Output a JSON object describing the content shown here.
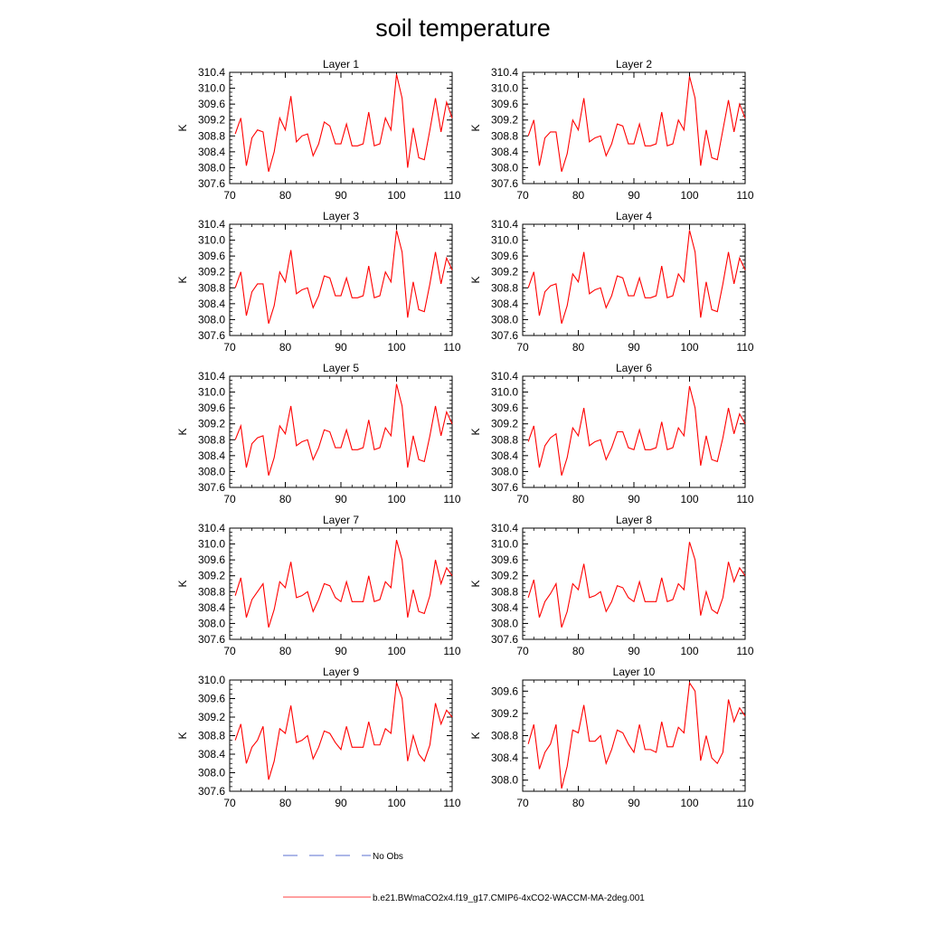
{
  "figure": {
    "title": "soil temperature",
    "legend": [
      {
        "label": "No Obs",
        "color": "#5a6fd0",
        "dash": true
      },
      {
        "label": "b.e21.BWmaCO2x4.f19_g17.CMIP6-4xCO2-WACCM-MA-2deg.001",
        "color": "#ff4040",
        "dash": false
      }
    ]
  },
  "chart_data": [
    {
      "type": "line",
      "title": "Layer 1",
      "xlabel": "",
      "ylabel": "K",
      "xlim": [
        70,
        110
      ],
      "ylim": [
        307.6,
        310.4
      ],
      "xticks": [
        70,
        80,
        90,
        100,
        110
      ],
      "yticks": [
        307.6,
        308.0,
        308.4,
        308.8,
        309.2,
        309.6,
        310.0,
        310.4
      ],
      "x": [
        71,
        72,
        73,
        74,
        75,
        76,
        77,
        78,
        79,
        80,
        81,
        82,
        83,
        84,
        85,
        86,
        87,
        88,
        89,
        90,
        91,
        92,
        93,
        94,
        95,
        96,
        97,
        98,
        99,
        100,
        101,
        102,
        103,
        104,
        105,
        106,
        107,
        108,
        109,
        110
      ],
      "series": [
        {
          "color": "#ff0000",
          "values": [
            308.85,
            309.25,
            308.05,
            308.75,
            308.95,
            308.9,
            307.9,
            308.4,
            309.25,
            308.95,
            309.8,
            308.65,
            308.8,
            308.85,
            308.3,
            308.6,
            309.15,
            309.05,
            308.6,
            308.6,
            309.1,
            308.55,
            308.55,
            308.6,
            309.4,
            308.55,
            308.6,
            309.25,
            308.95,
            310.35,
            309.75,
            308.0,
            309.0,
            308.25,
            308.2,
            308.95,
            309.75,
            308.9,
            309.65,
            309.25
          ]
        }
      ]
    },
    {
      "type": "line",
      "title": "Layer 2",
      "xlabel": "",
      "ylabel": "K",
      "xlim": [
        70,
        110
      ],
      "ylim": [
        307.6,
        310.4
      ],
      "xticks": [
        70,
        80,
        90,
        100,
        110
      ],
      "yticks": [
        307.6,
        308.0,
        308.4,
        308.8,
        309.2,
        309.6,
        310.0,
        310.4
      ],
      "x": [
        71,
        72,
        73,
        74,
        75,
        76,
        77,
        78,
        79,
        80,
        81,
        82,
        83,
        84,
        85,
        86,
        87,
        88,
        89,
        90,
        91,
        92,
        93,
        94,
        95,
        96,
        97,
        98,
        99,
        100,
        101,
        102,
        103,
        104,
        105,
        106,
        107,
        108,
        109,
        110
      ],
      "series": [
        {
          "color": "#ff0000",
          "values": [
            308.8,
            309.2,
            308.05,
            308.75,
            308.9,
            308.9,
            307.9,
            308.35,
            309.2,
            308.95,
            309.75,
            308.65,
            308.75,
            308.8,
            308.3,
            308.6,
            309.1,
            309.05,
            308.6,
            308.6,
            309.1,
            308.55,
            308.55,
            308.6,
            309.4,
            308.55,
            308.6,
            309.2,
            308.95,
            310.3,
            309.75,
            308.05,
            308.95,
            308.25,
            308.2,
            308.95,
            309.7,
            308.9,
            309.6,
            309.25
          ]
        }
      ]
    },
    {
      "type": "line",
      "title": "Layer 3",
      "xlabel": "",
      "ylabel": "K",
      "xlim": [
        70,
        110
      ],
      "ylim": [
        307.6,
        310.4
      ],
      "xticks": [
        70,
        80,
        90,
        100,
        110
      ],
      "yticks": [
        307.6,
        308.0,
        308.4,
        308.8,
        309.2,
        309.6,
        310.0,
        310.4
      ],
      "x": [
        71,
        72,
        73,
        74,
        75,
        76,
        77,
        78,
        79,
        80,
        81,
        82,
        83,
        84,
        85,
        86,
        87,
        88,
        89,
        90,
        91,
        92,
        93,
        94,
        95,
        96,
        97,
        98,
        99,
        100,
        101,
        102,
        103,
        104,
        105,
        106,
        107,
        108,
        109,
        110
      ],
      "series": [
        {
          "color": "#ff0000",
          "values": [
            308.8,
            309.2,
            308.1,
            308.7,
            308.9,
            308.9,
            307.9,
            308.35,
            309.2,
            308.95,
            309.75,
            308.65,
            308.75,
            308.8,
            308.3,
            308.6,
            309.1,
            309.05,
            308.6,
            308.6,
            309.05,
            308.55,
            308.55,
            308.6,
            309.35,
            308.55,
            308.6,
            309.2,
            308.95,
            310.25,
            309.7,
            308.05,
            308.95,
            308.25,
            308.2,
            308.9,
            309.7,
            308.9,
            309.55,
            309.25
          ]
        }
      ]
    },
    {
      "type": "line",
      "title": "Layer 4",
      "xlabel": "",
      "ylabel": "K",
      "xlim": [
        70,
        110
      ],
      "ylim": [
        307.6,
        310.4
      ],
      "xticks": [
        70,
        80,
        90,
        100,
        110
      ],
      "yticks": [
        307.6,
        308.0,
        308.4,
        308.8,
        309.2,
        309.6,
        310.0,
        310.4
      ],
      "x": [
        71,
        72,
        73,
        74,
        75,
        76,
        77,
        78,
        79,
        80,
        81,
        82,
        83,
        84,
        85,
        86,
        87,
        88,
        89,
        90,
        91,
        92,
        93,
        94,
        95,
        96,
        97,
        98,
        99,
        100,
        101,
        102,
        103,
        104,
        105,
        106,
        107,
        108,
        109,
        110
      ],
      "series": [
        {
          "color": "#ff0000",
          "values": [
            308.8,
            309.2,
            308.1,
            308.7,
            308.85,
            308.9,
            307.9,
            308.35,
            309.15,
            308.95,
            309.7,
            308.65,
            308.75,
            308.8,
            308.3,
            308.6,
            309.1,
            309.05,
            308.6,
            308.6,
            309.05,
            308.55,
            308.55,
            308.6,
            309.35,
            308.55,
            308.6,
            309.15,
            308.95,
            310.25,
            309.7,
            308.05,
            308.95,
            308.25,
            308.2,
            308.9,
            309.7,
            308.9,
            309.55,
            309.25
          ]
        }
      ]
    },
    {
      "type": "line",
      "title": "Layer 5",
      "xlabel": "",
      "ylabel": "K",
      "xlim": [
        70,
        110
      ],
      "ylim": [
        307.6,
        310.4
      ],
      "xticks": [
        70,
        80,
        90,
        100,
        110
      ],
      "yticks": [
        307.6,
        308.0,
        308.4,
        308.8,
        309.2,
        309.6,
        310.0,
        310.4
      ],
      "x": [
        71,
        72,
        73,
        74,
        75,
        76,
        77,
        78,
        79,
        80,
        81,
        82,
        83,
        84,
        85,
        86,
        87,
        88,
        89,
        90,
        91,
        92,
        93,
        94,
        95,
        96,
        97,
        98,
        99,
        100,
        101,
        102,
        103,
        104,
        105,
        106,
        107,
        108,
        109,
        110
      ],
      "series": [
        {
          "color": "#ff0000",
          "values": [
            308.8,
            309.15,
            308.1,
            308.7,
            308.85,
            308.9,
            307.9,
            308.35,
            309.15,
            308.95,
            309.65,
            308.65,
            308.75,
            308.8,
            308.3,
            308.6,
            309.05,
            309.0,
            308.6,
            308.6,
            309.05,
            308.55,
            308.55,
            308.6,
            309.3,
            308.55,
            308.6,
            309.1,
            308.9,
            310.2,
            309.65,
            308.1,
            308.9,
            308.3,
            308.25,
            308.9,
            309.65,
            308.9,
            309.5,
            309.2
          ]
        }
      ]
    },
    {
      "type": "line",
      "title": "Layer 6",
      "xlabel": "",
      "ylabel": "K",
      "xlim": [
        70,
        110
      ],
      "ylim": [
        307.6,
        310.4
      ],
      "xticks": [
        70,
        80,
        90,
        100,
        110
      ],
      "yticks": [
        307.6,
        308.0,
        308.4,
        308.8,
        309.2,
        309.6,
        310.0,
        310.4
      ],
      "x": [
        71,
        72,
        73,
        74,
        75,
        76,
        77,
        78,
        79,
        80,
        81,
        82,
        83,
        84,
        85,
        86,
        87,
        88,
        89,
        90,
        91,
        92,
        93,
        94,
        95,
        96,
        97,
        98,
        99,
        100,
        101,
        102,
        103,
        104,
        105,
        106,
        107,
        108,
        109,
        110
      ],
      "series": [
        {
          "color": "#ff0000",
          "values": [
            308.75,
            309.15,
            308.1,
            308.65,
            308.85,
            308.95,
            307.9,
            308.35,
            309.1,
            308.9,
            309.6,
            308.65,
            308.75,
            308.8,
            308.3,
            308.6,
            309.0,
            309.0,
            308.6,
            308.55,
            309.05,
            308.55,
            308.55,
            308.6,
            309.25,
            308.55,
            308.6,
            309.1,
            308.9,
            310.15,
            309.6,
            308.15,
            308.9,
            308.3,
            308.25,
            308.85,
            309.6,
            308.95,
            309.45,
            309.2
          ]
        }
      ]
    },
    {
      "type": "line",
      "title": "Layer 7",
      "xlabel": "",
      "ylabel": "K",
      "xlim": [
        70,
        110
      ],
      "ylim": [
        307.6,
        310.4
      ],
      "xticks": [
        70,
        80,
        90,
        100,
        110
      ],
      "yticks": [
        307.6,
        308.0,
        308.4,
        308.8,
        309.2,
        309.6,
        310.0,
        310.4
      ],
      "x": [
        71,
        72,
        73,
        74,
        75,
        76,
        77,
        78,
        79,
        80,
        81,
        82,
        83,
        84,
        85,
        86,
        87,
        88,
        89,
        90,
        91,
        92,
        93,
        94,
        95,
        96,
        97,
        98,
        99,
        100,
        101,
        102,
        103,
        104,
        105,
        106,
        107,
        108,
        109,
        110
      ],
      "series": [
        {
          "color": "#ff0000",
          "values": [
            308.7,
            309.15,
            308.15,
            308.6,
            308.8,
            309.0,
            307.9,
            308.35,
            309.05,
            308.9,
            309.55,
            308.65,
            308.7,
            308.8,
            308.3,
            308.6,
            309.0,
            308.95,
            308.65,
            308.55,
            309.05,
            308.55,
            308.55,
            308.55,
            309.2,
            308.55,
            308.6,
            309.05,
            308.9,
            310.1,
            309.6,
            308.15,
            308.85,
            308.3,
            308.25,
            308.7,
            309.6,
            309.0,
            309.4,
            309.2
          ]
        }
      ]
    },
    {
      "type": "line",
      "title": "Layer 8",
      "xlabel": "",
      "ylabel": "K",
      "xlim": [
        70,
        110
      ],
      "ylim": [
        307.6,
        310.4
      ],
      "xticks": [
        70,
        80,
        90,
        100,
        110
      ],
      "yticks": [
        307.6,
        308.0,
        308.4,
        308.8,
        309.2,
        309.6,
        310.0,
        310.4
      ],
      "x": [
        71,
        72,
        73,
        74,
        75,
        76,
        77,
        78,
        79,
        80,
        81,
        82,
        83,
        84,
        85,
        86,
        87,
        88,
        89,
        90,
        91,
        92,
        93,
        94,
        95,
        96,
        97,
        98,
        99,
        100,
        101,
        102,
        103,
        104,
        105,
        106,
        107,
        108,
        109,
        110
      ],
      "series": [
        {
          "color": "#ff0000",
          "values": [
            308.65,
            309.1,
            308.15,
            308.55,
            308.75,
            309.0,
            307.9,
            308.3,
            309.0,
            308.85,
            309.5,
            308.65,
            308.7,
            308.8,
            308.3,
            308.55,
            308.95,
            308.9,
            308.65,
            308.55,
            309.05,
            308.55,
            308.55,
            308.55,
            309.15,
            308.55,
            308.6,
            309.0,
            308.85,
            310.05,
            309.6,
            308.2,
            308.8,
            308.35,
            308.25,
            308.65,
            309.55,
            309.05,
            309.4,
            309.2
          ]
        }
      ]
    },
    {
      "type": "line",
      "title": "Layer 9",
      "xlabel": "",
      "ylabel": "K",
      "xlim": [
        70,
        110
      ],
      "ylim": [
        307.6,
        310.0
      ],
      "xticks": [
        70,
        80,
        90,
        100,
        110
      ],
      "yticks": [
        307.6,
        308.0,
        308.4,
        308.8,
        309.2,
        309.6,
        310.0
      ],
      "x": [
        71,
        72,
        73,
        74,
        75,
        76,
        77,
        78,
        79,
        80,
        81,
        82,
        83,
        84,
        85,
        86,
        87,
        88,
        89,
        90,
        91,
        92,
        93,
        94,
        95,
        96,
        97,
        98,
        99,
        100,
        101,
        102,
        103,
        104,
        105,
        106,
        107,
        108,
        109,
        110
      ],
      "series": [
        {
          "color": "#ff0000",
          "values": [
            308.7,
            309.05,
            308.2,
            308.55,
            308.7,
            309.0,
            307.85,
            308.25,
            308.95,
            308.85,
            309.45,
            308.65,
            308.7,
            308.8,
            308.3,
            308.55,
            308.9,
            308.85,
            308.65,
            308.5,
            309.0,
            308.55,
            308.55,
            308.55,
            309.1,
            308.6,
            308.6,
            308.95,
            308.85,
            309.95,
            309.6,
            308.25,
            308.8,
            308.4,
            308.25,
            308.6,
            309.5,
            309.05,
            309.35,
            309.2
          ]
        }
      ]
    },
    {
      "type": "line",
      "title": "Layer 10",
      "xlabel": "",
      "ylabel": "K",
      "xlim": [
        70,
        110
      ],
      "ylim": [
        307.8,
        309.8
      ],
      "xticks": [
        70,
        80,
        90,
        100,
        110
      ],
      "yticks": [
        308.0,
        308.4,
        308.8,
        309.2,
        309.6
      ],
      "x": [
        71,
        72,
        73,
        74,
        75,
        76,
        77,
        78,
        79,
        80,
        81,
        82,
        83,
        84,
        85,
        86,
        87,
        88,
        89,
        90,
        91,
        92,
        93,
        94,
        95,
        96,
        97,
        98,
        99,
        100,
        101,
        102,
        103,
        104,
        105,
        106,
        107,
        108,
        109,
        110
      ],
      "series": [
        {
          "color": "#ff0000",
          "values": [
            308.65,
            309.0,
            308.2,
            308.5,
            308.65,
            309.0,
            307.85,
            308.25,
            308.9,
            308.85,
            309.35,
            308.7,
            308.7,
            308.8,
            308.3,
            308.55,
            308.9,
            308.85,
            308.65,
            308.5,
            309.0,
            308.55,
            308.55,
            308.5,
            309.05,
            308.6,
            308.6,
            308.95,
            308.85,
            309.75,
            309.6,
            308.35,
            308.8,
            308.4,
            308.3,
            308.5,
            309.45,
            309.05,
            309.3,
            309.15
          ]
        }
      ]
    }
  ]
}
